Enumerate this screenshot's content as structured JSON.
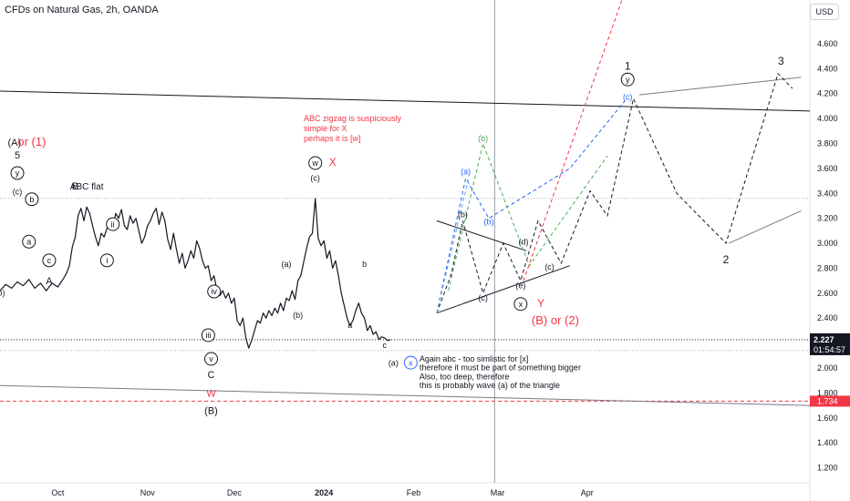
{
  "header": {
    "title": "CFDs on Natural Gas, 2h, OANDA",
    "currency": "USD"
  },
  "price_badges": {
    "last_price": "2.227",
    "countdown": "01:54:57",
    "marked_level": "1.734",
    "last_color": "#131722",
    "marked_color": "#f23645"
  },
  "chart_data": {
    "type": "line",
    "instrument": "CFDs on Natural Gas",
    "timeframe": "2h",
    "source": "OANDA",
    "y_axis": {
      "position": "right",
      "ticks": [
        1.2,
        1.4,
        1.6,
        1.8,
        2.0,
        2.2,
        2.4,
        2.6,
        2.8,
        3.0,
        3.2,
        3.4,
        3.6,
        3.8,
        4.0,
        4.2,
        4.4,
        4.6
      ],
      "tick_labels": [
        "1.200",
        "1.400",
        "1.600",
        "1.800",
        "2.000",
        "2.200",
        "2.400",
        "2.600",
        "2.800",
        "3.000",
        "3.200",
        "3.400",
        "3.600",
        "3.800",
        "4.000",
        "4.200",
        "4.400",
        "4.600"
      ],
      "ylim": [
        1.08,
        4.95
      ]
    },
    "x_axis": {
      "tick_labels": [
        "Oct",
        "Nov",
        "Dec",
        "2024",
        "Feb",
        "Mar",
        "Apr"
      ],
      "tick_days": [
        0,
        31,
        61,
        92,
        123,
        152,
        183
      ],
      "xlim": [
        -20,
        260
      ]
    },
    "price_series": {
      "name": "",
      "color": "#131722",
      "points": [
        [
          -20,
          2.62
        ],
        [
          -18,
          2.67
        ],
        [
          -16,
          2.64
        ],
        [
          -14,
          2.69
        ],
        [
          -12,
          2.66
        ],
        [
          -10,
          2.71
        ],
        [
          -8,
          2.64
        ],
        [
          -6,
          2.68
        ],
        [
          -4,
          2.62
        ],
        [
          -2,
          2.68
        ],
        [
          0,
          2.65
        ],
        [
          2,
          2.72
        ],
        [
          3,
          2.76
        ],
        [
          4,
          2.82
        ],
        [
          5,
          2.97
        ],
        [
          6,
          3.05
        ],
        [
          7,
          3.22
        ],
        [
          8,
          3.28
        ],
        [
          9,
          3.18
        ],
        [
          10,
          3.29
        ],
        [
          11,
          3.24
        ],
        [
          12,
          3.14
        ],
        [
          13,
          3.05
        ],
        [
          14,
          2.98
        ],
        [
          15,
          3.08
        ],
        [
          16,
          3.05
        ],
        [
          17,
          3.12
        ],
        [
          18,
          3.18
        ],
        [
          19,
          3.12
        ],
        [
          20,
          3.24
        ],
        [
          21,
          3.2
        ],
        [
          22,
          3.27
        ],
        [
          23,
          3.14
        ],
        [
          24,
          3.11
        ],
        [
          25,
          3.22
        ],
        [
          26,
          3.16
        ],
        [
          27,
          3.2
        ],
        [
          28,
          3.1
        ],
        [
          29,
          3.0
        ],
        [
          30,
          3.05
        ],
        [
          31,
          3.14
        ],
        [
          32,
          3.18
        ],
        [
          33,
          3.24
        ],
        [
          34,
          3.28
        ],
        [
          35,
          3.15
        ],
        [
          36,
          3.25
        ],
        [
          37,
          3.18
        ],
        [
          38,
          3.03
        ],
        [
          39,
          2.95
        ],
        [
          40,
          3.08
        ],
        [
          41,
          2.95
        ],
        [
          42,
          2.84
        ],
        [
          43,
          2.92
        ],
        [
          44,
          2.8
        ],
        [
          45,
          2.86
        ],
        [
          46,
          2.94
        ],
        [
          47,
          2.88
        ],
        [
          48,
          3.02
        ],
        [
          49,
          2.96
        ],
        [
          50,
          2.86
        ],
        [
          51,
          2.8
        ],
        [
          52,
          2.82
        ],
        [
          53,
          2.7
        ],
        [
          54,
          2.74
        ],
        [
          55,
          2.62
        ],
        [
          56,
          2.58
        ],
        [
          57,
          2.62
        ],
        [
          58,
          2.56
        ],
        [
          59,
          2.6
        ],
        [
          60,
          2.52
        ],
        [
          61,
          2.56
        ],
        [
          62,
          2.38
        ],
        [
          63,
          2.34
        ],
        [
          64,
          2.4
        ],
        [
          65,
          2.24
        ],
        [
          66,
          2.16
        ],
        [
          67,
          2.22
        ],
        [
          68,
          2.3
        ],
        [
          69,
          2.38
        ],
        [
          70,
          2.36
        ],
        [
          71,
          2.44
        ],
        [
          72,
          2.4
        ],
        [
          73,
          2.46
        ],
        [
          74,
          2.42
        ],
        [
          75,
          2.48
        ],
        [
          76,
          2.44
        ],
        [
          77,
          2.52
        ],
        [
          78,
          2.46
        ],
        [
          79,
          2.56
        ],
        [
          80,
          2.54
        ],
        [
          81,
          2.62
        ],
        [
          82,
          2.55
        ],
        [
          83,
          2.7
        ],
        [
          84,
          2.74
        ],
        [
          85,
          2.85
        ],
        [
          86,
          2.96
        ],
        [
          87,
          3.05
        ],
        [
          88,
          3.08
        ],
        [
          89,
          3.36
        ],
        [
          90,
          3.04
        ],
        [
          91,
          2.98
        ],
        [
          92,
          3.02
        ],
        [
          93,
          2.88
        ],
        [
          94,
          2.94
        ],
        [
          95,
          2.8
        ],
        [
          96,
          2.86
        ],
        [
          97,
          2.74
        ],
        [
          98,
          2.6
        ],
        [
          99,
          2.5
        ],
        [
          100,
          2.4
        ],
        [
          101,
          2.34
        ],
        [
          102,
          2.38
        ],
        [
          103,
          2.46
        ],
        [
          104,
          2.52
        ],
        [
          105,
          2.44
        ],
        [
          106,
          2.4
        ],
        [
          107,
          2.3
        ],
        [
          108,
          2.34
        ],
        [
          109,
          2.27
        ],
        [
          110,
          2.29
        ],
        [
          111,
          2.23
        ],
        [
          112,
          2.25
        ],
        [
          113,
          2.24
        ],
        [
          114,
          2.22
        ],
        [
          115,
          2.227
        ]
      ]
    },
    "trendlines": [
      {
        "name": "upper",
        "color": "#131722",
        "points": [
          [
            -20,
            4.22
          ],
          [
            260,
            4.06
          ]
        ]
      },
      {
        "name": "lower",
        "color": "#787b86",
        "points": [
          [
            -20,
            1.86
          ],
          [
            260,
            1.7
          ]
        ]
      },
      {
        "name": "triangle-upper",
        "color": "#131722",
        "points": [
          [
            131,
            3.18
          ],
          [
            162,
            2.94
          ]
        ]
      },
      {
        "name": "triangle-lower",
        "color": "#131722",
        "points": [
          [
            131,
            2.44
          ],
          [
            177,
            2.82
          ]
        ]
      },
      {
        "name": "proj-grey-1",
        "color": "#787b86",
        "points": [
          [
            201,
            4.19
          ],
          [
            257,
            4.33
          ]
        ]
      },
      {
        "name": "proj-grey-2",
        "color": "#787b86",
        "points": [
          [
            232,
            3.0
          ],
          [
            257,
            3.26
          ]
        ]
      }
    ],
    "dashed_paths": [
      {
        "name": "black-path",
        "color": "#131722",
        "points": [
          [
            131,
            2.44
          ],
          [
            136,
            2.75
          ],
          [
            140,
            3.18
          ],
          [
            147,
            2.6
          ],
          [
            154,
            3.0
          ],
          [
            160,
            2.7
          ],
          [
            166,
            3.18
          ],
          [
            174,
            2.84
          ],
          [
            184,
            3.42
          ],
          [
            190,
            3.22
          ],
          [
            199,
            4.16
          ],
          [
            214,
            3.4
          ],
          [
            231,
            3.0
          ],
          [
            249,
            4.36
          ],
          [
            254,
            4.24
          ]
        ]
      },
      {
        "name": "blue-path",
        "color": "#2962ff",
        "points": [
          [
            131,
            2.44
          ],
          [
            141,
            3.52
          ],
          [
            149,
            3.2
          ],
          [
            177,
            3.6
          ],
          [
            196,
            4.14
          ]
        ]
      },
      {
        "name": "light-blue-path",
        "color": "#5fa8d3",
        "points": [
          [
            131,
            2.44
          ],
          [
            142,
            3.52
          ]
        ]
      },
      {
        "name": "green-path",
        "color": "#4caf50",
        "points": [
          [
            135,
            2.62
          ],
          [
            147,
            3.8
          ],
          [
            163,
            2.82
          ],
          [
            190,
            3.7
          ]
        ]
      },
      {
        "name": "red-path",
        "color": "#f23645",
        "points": [
          [
            161,
            2.7
          ],
          [
            195,
            4.95
          ]
        ]
      }
    ],
    "h_levels": [
      {
        "name": "last-price",
        "value": 2.227,
        "color": "#131722",
        "style": "dotted"
      },
      {
        "name": "dotted-grey-1",
        "value": 3.36,
        "color": "#b2b5be",
        "style": "dotted"
      },
      {
        "name": "dotted-grey-2",
        "value": 2.14,
        "color": "#b2b5be",
        "style": "dotted"
      },
      {
        "name": "red-level",
        "value": 1.734,
        "color": "#f23645",
        "style": "dashed"
      }
    ],
    "v_lines": [
      {
        "name": "vertical-marker",
        "day": 151
      }
    ],
    "annotations": [
      {
        "text": "(A)",
        "x": -15,
        "y": 3.78,
        "color": "#131722",
        "size": 11
      },
      {
        "text": "or (1)",
        "x": -9,
        "y": 3.78,
        "color": "#f23645",
        "size": 13
      },
      {
        "text": "5",
        "x": -14,
        "y": 3.68,
        "color": "#131722",
        "size": 11
      },
      {
        "text": "y",
        "x": -14,
        "y": 3.54,
        "color": "#131722",
        "size": 9,
        "circle": true
      },
      {
        "text": "(c)",
        "x": -14,
        "y": 3.39,
        "color": "#131722",
        "size": 9
      },
      {
        "text": "b",
        "x": -9,
        "y": 3.33,
        "color": "#131722",
        "size": 9,
        "circle": true
      },
      {
        "text": "a",
        "x": -10,
        "y": 2.99,
        "color": "#131722",
        "size": 9,
        "circle": true
      },
      {
        "text": "c",
        "x": -3,
        "y": 2.84,
        "color": "#131722",
        "size": 9,
        "circle": true
      },
      {
        "text": "A",
        "x": -3,
        "y": 2.67,
        "color": "#131722",
        "size": 11
      },
      {
        "text": "(b)",
        "x": -20,
        "y": 2.58,
        "color": "#131722",
        "size": 9
      },
      {
        "text": "B",
        "x": 6,
        "y": 3.43,
        "color": "#131722",
        "size": 11
      },
      {
        "text": "ABC flat",
        "x": 10,
        "y": 3.43,
        "color": "#131722",
        "size": 10
      },
      {
        "text": "ii",
        "x": 19,
        "y": 3.13,
        "color": "#131722",
        "size": 9,
        "circle": true
      },
      {
        "text": "i",
        "x": 17,
        "y": 2.84,
        "color": "#131722",
        "size": 9,
        "circle": true
      },
      {
        "text": "iv",
        "x": 54,
        "y": 2.59,
        "color": "#131722",
        "size": 9,
        "circle": true
      },
      {
        "text": "iii",
        "x": 52,
        "y": 2.24,
        "color": "#131722",
        "size": 9,
        "circle": true
      },
      {
        "text": "v",
        "x": 53,
        "y": 2.05,
        "color": "#131722",
        "size": 9,
        "circle": true
      },
      {
        "text": "C",
        "x": 53,
        "y": 1.92,
        "color": "#131722",
        "size": 11
      },
      {
        "text": "W",
        "x": 53,
        "y": 1.77,
        "color": "#f23645",
        "size": 11
      },
      {
        "text": "(B)",
        "x": 53,
        "y": 1.63,
        "color": "#131722",
        "size": 11
      },
      {
        "text": "(a)",
        "x": 79,
        "y": 2.81,
        "color": "#131722",
        "size": 9
      },
      {
        "text": "(b)",
        "x": 83,
        "y": 2.4,
        "color": "#131722",
        "size": 9
      },
      {
        "text": "w",
        "x": 89,
        "y": 3.62,
        "color": "#131722",
        "size": 9,
        "circle": true
      },
      {
        "text": "X",
        "x": 95,
        "y": 3.62,
        "color": "#f23645",
        "size": 12
      },
      {
        "text": "(c)",
        "x": 89,
        "y": 3.5,
        "color": "#131722",
        "size": 9
      },
      {
        "text": "ABC zigzag is suspiciously",
        "x": 85,
        "y": 3.98,
        "color": "#f23645",
        "size": 9,
        "anchor": "start"
      },
      {
        "text": "simple for X",
        "x": 85,
        "y": 3.9,
        "color": "#f23645",
        "size": 9,
        "anchor": "start"
      },
      {
        "text": "perhaps it is [w]",
        "x": 85,
        "y": 3.82,
        "color": "#f23645",
        "size": 9,
        "anchor": "start"
      },
      {
        "text": "b",
        "x": 106,
        "y": 2.81,
        "color": "#131722",
        "size": 9
      },
      {
        "text": "a",
        "x": 101,
        "y": 2.32,
        "color": "#131722",
        "size": 9
      },
      {
        "text": "c",
        "x": 113,
        "y": 2.16,
        "color": "#131722",
        "size": 9
      },
      {
        "text": "(a)",
        "x": 116,
        "y": 2.02,
        "color": "#131722",
        "size": 9
      },
      {
        "text": "x",
        "x": 122,
        "y": 2.02,
        "color": "#2962ff",
        "size": 9,
        "circle": true
      },
      {
        "text": "Again abc - too simlistic for [x]",
        "x": 125,
        "y": 2.05,
        "color": "#131722",
        "size": 9,
        "anchor": "start"
      },
      {
        "text": "therefore it must be part of something bigger",
        "x": 125,
        "y": 1.98,
        "color": "#131722",
        "size": 9,
        "anchor": "start"
      },
      {
        "text": "Also, too deep, therefore",
        "x": 125,
        "y": 1.91,
        "color": "#131722",
        "size": 9,
        "anchor": "start"
      },
      {
        "text": "this is probably wave (a) of the triangle",
        "x": 125,
        "y": 1.84,
        "color": "#131722",
        "size": 9,
        "anchor": "start"
      },
      {
        "text": "(a)",
        "x": 141,
        "y": 3.55,
        "color": "#2962ff",
        "size": 9
      },
      {
        "text": "(b)",
        "x": 140,
        "y": 3.21,
        "color": "#131722",
        "size": 9
      },
      {
        "text": "(b)",
        "x": 147,
        "y": 3.82,
        "color": "#4caf50",
        "size": 9
      },
      {
        "text": "(b)",
        "x": 149,
        "y": 3.15,
        "color": "#2962ff",
        "size": 9
      },
      {
        "text": "(c)",
        "x": 147,
        "y": 2.54,
        "color": "#131722",
        "size": 9
      },
      {
        "text": "(d)",
        "x": 161,
        "y": 2.99,
        "color": "#131722",
        "size": 9
      },
      {
        "text": "(e)",
        "x": 160,
        "y": 2.64,
        "color": "#131722",
        "size": 9
      },
      {
        "text": "x",
        "x": 160,
        "y": 2.49,
        "color": "#131722",
        "size": 9,
        "circle": true
      },
      {
        "text": "Y",
        "x": 167,
        "y": 2.49,
        "color": "#f23645",
        "size": 12
      },
      {
        "text": "(B) or (2)",
        "x": 172,
        "y": 2.35,
        "color": "#f23645",
        "size": 13
      },
      {
        "text": "(c)",
        "x": 170,
        "y": 2.79,
        "color": "#131722",
        "size": 9
      },
      {
        "text": "1",
        "x": 197,
        "y": 4.39,
        "color": "#131722",
        "size": 12
      },
      {
        "text": "y",
        "x": 197,
        "y": 4.29,
        "color": "#131722",
        "size": 9,
        "circle": true
      },
      {
        "text": "(c)",
        "x": 197,
        "y": 4.15,
        "color": "#2962ff",
        "size": 9
      },
      {
        "text": "2",
        "x": 231,
        "y": 2.84,
        "color": "#131722",
        "size": 12
      },
      {
        "text": "3",
        "x": 250,
        "y": 4.43,
        "color": "#131722",
        "size": 12
      }
    ]
  }
}
